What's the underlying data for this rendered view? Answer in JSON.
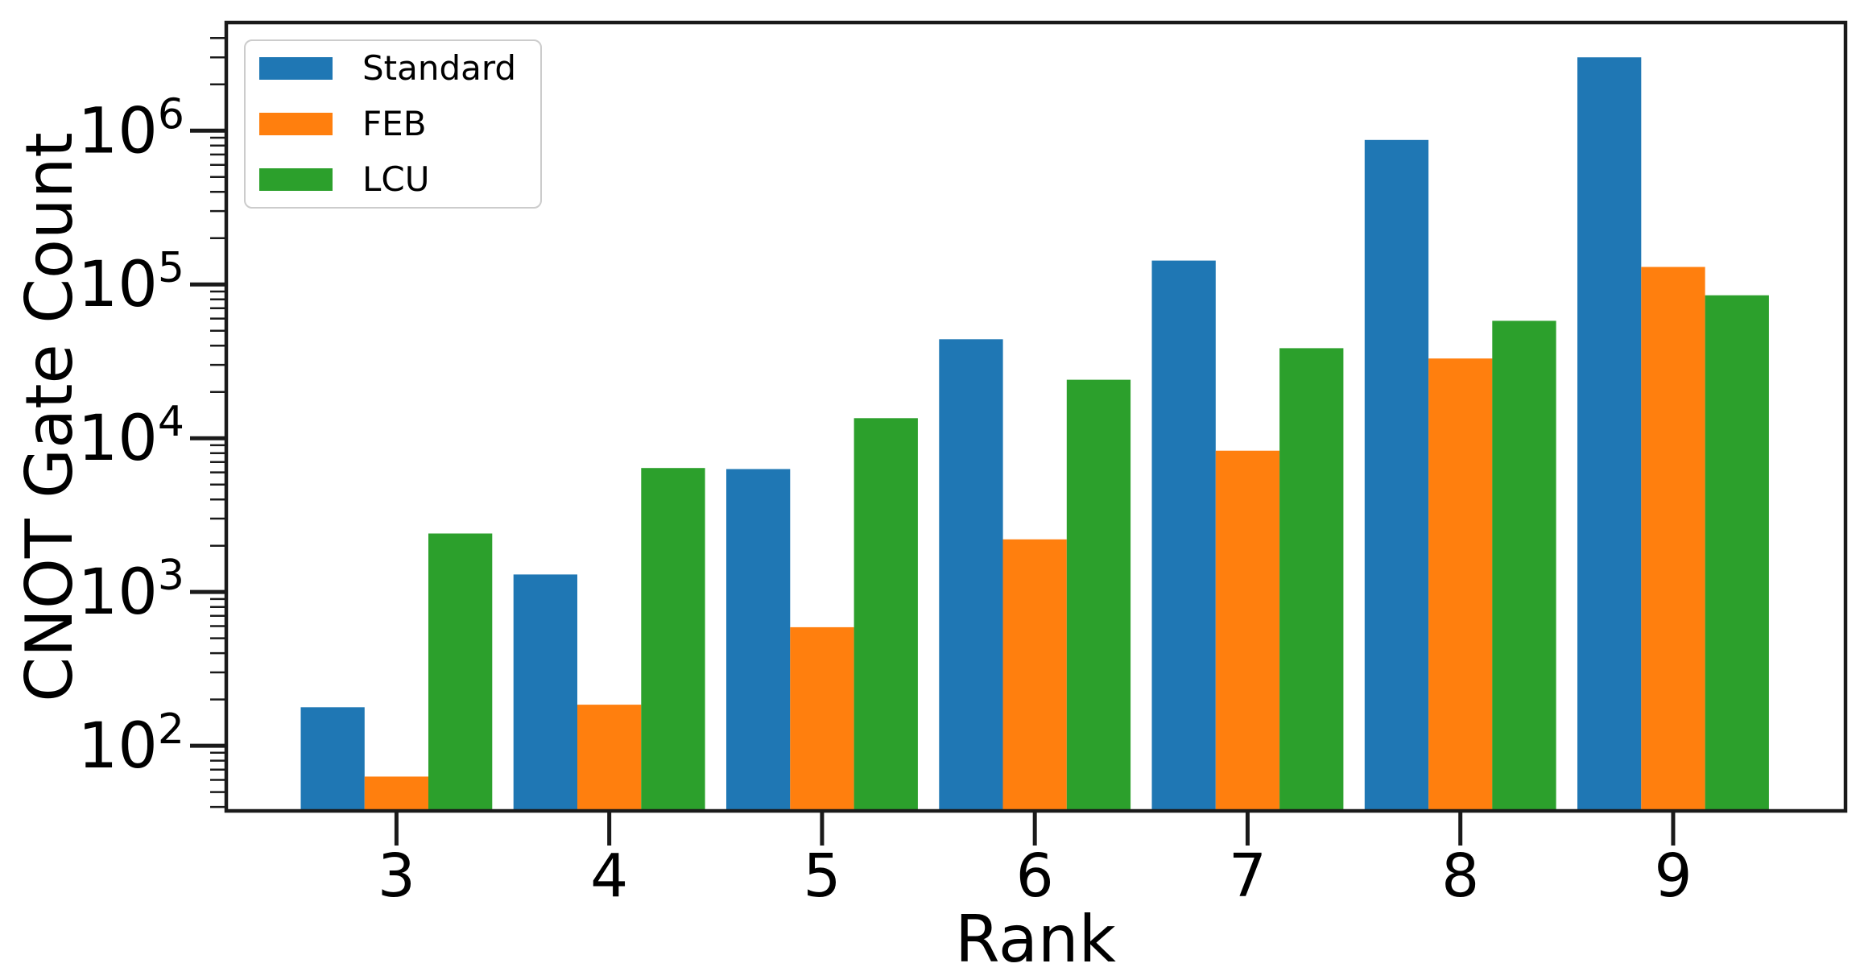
{
  "chart_data": {
    "type": "bar",
    "title": "",
    "xlabel": "Rank",
    "ylabel": "CNOT Gate Count",
    "categories": [
      3,
      4,
      5,
      6,
      7,
      8,
      9
    ],
    "series": [
      {
        "name": "Standard",
        "color": "#1f77b4",
        "values": [
          178,
          1300,
          6300,
          44000,
          143000,
          870000,
          3000000
        ]
      },
      {
        "name": "FEB",
        "color": "#ff7f0e",
        "values": [
          63,
          185,
          590,
          2200,
          8300,
          33000,
          130000
        ]
      },
      {
        "name": "LCU",
        "color": "#2ca02c",
        "values": [
          2400,
          6400,
          13500,
          24000,
          38500,
          58000,
          85000
        ]
      }
    ],
    "bar_width": 0.3,
    "grid": false,
    "legend_position": "upper left",
    "x_tick_labels": [
      "3",
      "4",
      "5",
      "6",
      "7",
      "8",
      "9"
    ],
    "y_scale": "log",
    "y_tick_exponents": [
      2,
      3,
      4,
      5,
      6
    ],
    "y_tick_labels": [
      "10^2",
      "10^3",
      "10^4",
      "10^5",
      "10^6"
    ],
    "xlim": [
      2.2,
      9.81
    ],
    "ylim": [
      37.7,
      5050000
    ],
    "axis_color": "#1a1a1a",
    "text_color": "#000000"
  }
}
